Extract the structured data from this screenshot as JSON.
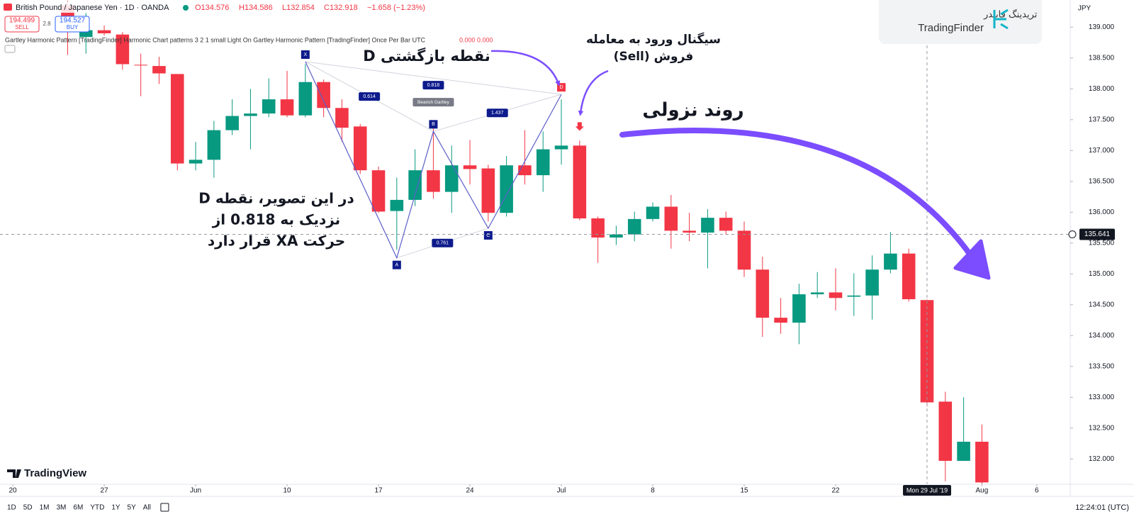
{
  "header": {
    "symbol": "British Pound / Japanese Yen · 1D · OANDA",
    "open": "O134.576",
    "high": "H134.586",
    "low": "L132.854",
    "close": "C132.918",
    "change": "−1.658 (−1.23%)",
    "sell_price": "194.499",
    "sell": "SELL",
    "spread": "2.8",
    "buy_price": "194.527",
    "buy": "BUY",
    "indicator": "Gartley Harmonic Pattern [TradingFinder] Harmonic Chart patterns 3 2 1 small Light On Gartley Harmonic Pattern [TradingFinder] Once Per Bar UTC",
    "indicator_values": "0.000 0.000"
  },
  "logo": {
    "fa": "تریدینگ فایندر",
    "en": "TradingFinder"
  },
  "annotations": {
    "reversal": "نقطه بازگشتی D",
    "signal_1": "سیگنال ورود به معامله",
    "signal_2": "فروش (Sell)",
    "trend": "روند نزولی",
    "note_1": "در این تصویر، نقطه D",
    "note_2": "نزدیک به 0.818 از",
    "note_3": "حرکت XA قرار دارد"
  },
  "chart_data": {
    "type": "candlestick",
    "x": [
      3,
      4,
      5,
      6,
      7,
      8,
      9,
      10,
      11,
      12,
      13,
      14,
      15,
      16,
      17,
      18,
      19,
      20,
      21,
      22,
      23,
      24,
      25,
      26,
      27,
      28,
      29,
      30,
      31,
      32,
      33,
      34,
      35,
      36,
      37,
      38,
      39,
      40,
      41,
      42,
      43,
      44,
      45,
      46,
      47,
      48,
      49,
      50,
      51,
      52,
      53
    ],
    "open": [
      139.35,
      138.84,
      138.95,
      138.88,
      138.39,
      138.37,
      138.24,
      136.79,
      136.85,
      137.33,
      137.56,
      137.6,
      137.83,
      137.57,
      138.11,
      137.69,
      137.39,
      136.68,
      136.02,
      136.2,
      136.68,
      136.33,
      136.76,
      136.71,
      135.99,
      136.76,
      136.6,
      137.02,
      137.08,
      135.9,
      135.59,
      135.64,
      135.89,
      136.09,
      135.7,
      135.67,
      135.91,
      135.7,
      135.07,
      134.29,
      134.21,
      134.67,
      134.7,
      134.63,
      134.65,
      135.07,
      135.33,
      134.576,
      132.93,
      131.97,
      132.28
    ],
    "high": [
      139.43,
      139.23,
      139.03,
      138.92,
      138.57,
      138.52,
      138.24,
      137.14,
      137.48,
      137.83,
      138.0,
      138.17,
      138.29,
      138.4,
      138.15,
      137.83,
      137.43,
      136.74,
      136.56,
      137.02,
      137.37,
      137.08,
      137.17,
      136.77,
      136.91,
      137.33,
      137.31,
      137.83,
      137.16,
      135.93,
      135.78,
      136.01,
      136.16,
      136.28,
      135.99,
      136.05,
      136.01,
      135.85,
      135.28,
      134.61,
      134.84,
      135.03,
      135.09,
      135.01,
      135.3,
      135.68,
      135.41,
      134.586,
      133.09,
      133.0,
      132.56
    ],
    "low": [
      138.55,
      138.57,
      138.86,
      138.31,
      137.88,
      138.08,
      136.68,
      136.68,
      136.56,
      137.25,
      137.02,
      137.54,
      137.54,
      137.54,
      137.54,
      137.14,
      136.62,
      135.99,
      135.39,
      136.1,
      136.22,
      135.99,
      136.45,
      135.85,
      135.93,
      136.45,
      136.33,
      136.77,
      135.87,
      135.18,
      135.47,
      135.53,
      135.85,
      135.41,
      135.53,
      135.09,
      135.64,
      134.95,
      133.98,
      134.03,
      133.86,
      134.61,
      134.41,
      134.32,
      134.26,
      135.01,
      134.55,
      132.854,
      131.64,
      131.97,
      131.59
    ],
    "close": [
      138.95,
      138.95,
      138.9,
      138.4,
      138.38,
      138.25,
      136.79,
      136.85,
      137.33,
      137.56,
      137.6,
      137.83,
      137.57,
      138.11,
      137.69,
      137.37,
      136.68,
      136.01,
      136.2,
      136.68,
      136.33,
      136.76,
      136.7,
      135.99,
      136.76,
      136.6,
      137.02,
      137.08,
      135.9,
      135.59,
      135.64,
      135.89,
      136.09,
      135.7,
      135.67,
      135.91,
      135.7,
      135.07,
      134.29,
      134.21,
      134.67,
      134.7,
      134.61,
      134.65,
      135.07,
      135.33,
      134.59,
      132.918,
      131.97,
      132.28,
      131.62
    ],
    "up_color": "#089981",
    "down_color": "#f23645",
    "xlim": [
      -0.7,
      57.83
    ],
    "xticks": [
      {
        "value": 0,
        "label": "20"
      },
      {
        "value": 5,
        "label": "27"
      },
      {
        "value": 10,
        "label": "Jun"
      },
      {
        "value": 15,
        "label": "10"
      },
      {
        "value": 20,
        "label": "17"
      },
      {
        "value": 25,
        "label": "24"
      },
      {
        "value": 30,
        "label": "Jul"
      },
      {
        "value": 35,
        "label": "8"
      },
      {
        "value": 40,
        "label": "15"
      },
      {
        "value": 45,
        "label": "22"
      },
      {
        "value": 53,
        "label": "Aug"
      },
      {
        "value": 56,
        "label": "6"
      }
    ],
    "ylim": [
      131.59,
      139.44
    ],
    "yticks": [
      {
        "value": 132,
        "label": "132.000"
      },
      {
        "value": 132.5,
        "label": "132.500"
      },
      {
        "value": 133,
        "label": "133.000"
      },
      {
        "value": 133.5,
        "label": "133.500"
      },
      {
        "value": 134,
        "label": "134.000"
      },
      {
        "value": 134.5,
        "label": "134.500"
      },
      {
        "value": 135,
        "label": "135.000"
      },
      {
        "value": 135.5,
        "label": "135.500"
      },
      {
        "value": 136,
        "label": "136.000"
      },
      {
        "value": 136.5,
        "label": "136.500"
      },
      {
        "value": 137,
        "label": "137.000"
      },
      {
        "value": 137.5,
        "label": "137.500"
      },
      {
        "value": 138,
        "label": "138.000"
      },
      {
        "value": 138.5,
        "label": "138.500"
      },
      {
        "value": 139,
        "label": "139.000"
      }
    ],
    "grid": false,
    "currency": "JPY",
    "crosshair": {
      "price": {
        "value": 135.641,
        "label": "135.641"
      },
      "x": 50,
      "x_label": "Mon 29 Jul '19"
    },
    "signal_x": 31,
    "pattern": {
      "name": "Bearish Gartley",
      "points": [
        {
          "label": "X",
          "x": 16,
          "y": 138.44
        },
        {
          "label": "A",
          "x": 21,
          "y": 135.26
        },
        {
          "label": "B",
          "x": 23,
          "y": 137.31
        },
        {
          "label": "C",
          "x": 26,
          "y": 135.74
        },
        {
          "label": "D",
          "x": 30,
          "y": 137.91
        }
      ],
      "ratios": [
        0.818,
        0.614,
        1.437,
        0.761
      ]
    },
    "timeframes": [
      "1D",
      "5D",
      "1M",
      "3M",
      "6M",
      "YTD",
      "1Y",
      "5Y",
      "All"
    ],
    "clock": "12:24:01 (UTC)",
    "brand": "TradingView"
  }
}
